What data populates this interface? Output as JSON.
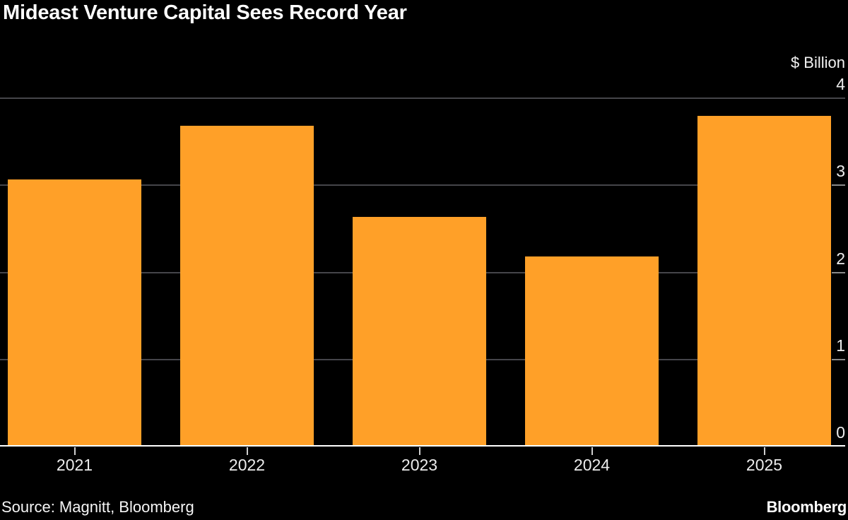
{
  "title": "Mideast Venture Capital Sees Record Year",
  "axis": {
    "unit_label": "$ Billion",
    "y_tick_labels": [
      "4",
      "3",
      "2",
      "1",
      "0"
    ],
    "x_tick_labels": [
      "2021",
      "2022",
      "2023",
      "2024",
      "2025"
    ]
  },
  "footer": {
    "source": "Source: Magnitt, Bloomberg",
    "brand": "Bloomberg"
  },
  "colors": {
    "background": "#000000",
    "bar": "#ffa028",
    "gridline": "#45454a",
    "axis_line": "#ffffff",
    "tick_mark": "#8a8a8a",
    "text": "#ffffff",
    "tick_text": "#ececec"
  },
  "chart_data": {
    "type": "bar",
    "title": "Mideast Venture Capital Sees Record Year",
    "categories": [
      "2021",
      "2022",
      "2023",
      "2024",
      "2025"
    ],
    "values": [
      3.07,
      3.68,
      2.64,
      2.18,
      3.8
    ],
    "xlabel": "",
    "ylabel": "$ Billion",
    "ylim": [
      0,
      4
    ],
    "yticks": [
      0,
      1,
      2,
      3,
      4
    ],
    "grid": true,
    "legend": false,
    "axis_side": "right",
    "bar_color": "#ffa028",
    "source": "Source: Magnitt, Bloomberg"
  }
}
